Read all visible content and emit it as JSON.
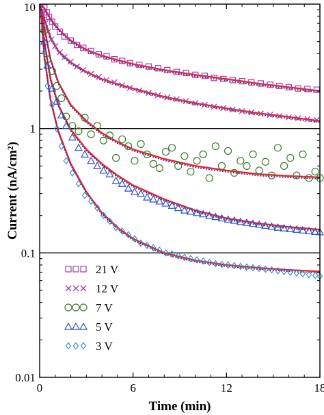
{
  "chart_data": {
    "type": "scatter",
    "xlabel": "Time (min)",
    "ylabel": "Current (nA/cm²)",
    "xlim": [
      0,
      18
    ],
    "ylim": [
      0.01,
      10
    ],
    "y_scale": "log",
    "x_ticks": [
      0,
      6,
      12,
      18
    ],
    "y_ticks": [
      {
        "value": 0.01,
        "label": "0.01"
      },
      {
        "value": 0.1,
        "label": "0.1"
      },
      {
        "value": 1,
        "label": "1"
      },
      {
        "value": 10,
        "label": "10"
      }
    ],
    "reference_lines_y": [
      1,
      0.1
    ],
    "legend_position": "bottom-left",
    "series": [
      {
        "name": "21 V",
        "marker": "square",
        "color": "#9b3fb5",
        "points": [
          [
            0.15,
            10.5
          ],
          [
            0.3,
            9.4
          ],
          [
            0.45,
            8.6
          ],
          [
            0.6,
            7.9
          ],
          [
            0.8,
            7.2
          ],
          [
            1.0,
            6.6
          ],
          [
            1.3,
            6.0
          ],
          [
            1.6,
            5.5
          ],
          [
            2.0,
            5.1
          ],
          [
            2.4,
            4.7
          ],
          [
            2.8,
            4.45
          ],
          [
            3.3,
            4.2
          ],
          [
            3.8,
            3.95
          ],
          [
            4.3,
            3.8
          ],
          [
            4.8,
            3.6
          ],
          [
            5.3,
            3.5
          ],
          [
            5.8,
            3.35
          ],
          [
            6.4,
            3.25
          ],
          [
            7.0,
            3.15
          ],
          [
            7.6,
            3.05
          ],
          [
            8.2,
            2.95
          ],
          [
            8.8,
            2.85
          ],
          [
            9.4,
            2.8
          ],
          [
            10.0,
            2.7
          ],
          [
            10.6,
            2.65
          ],
          [
            11.2,
            2.55
          ],
          [
            11.8,
            2.5
          ],
          [
            12.4,
            2.45
          ],
          [
            13.0,
            2.4
          ],
          [
            13.6,
            2.35
          ],
          [
            14.2,
            2.3
          ],
          [
            14.8,
            2.25
          ],
          [
            15.4,
            2.2
          ],
          [
            16.0,
            2.15
          ],
          [
            16.6,
            2.1
          ],
          [
            17.2,
            2.08
          ],
          [
            17.8,
            2.05
          ]
        ],
        "fit": [
          [
            0.05,
            11.5
          ],
          [
            0.3,
            9.3
          ],
          [
            0.7,
            7.6
          ],
          [
            1.2,
            6.3
          ],
          [
            2,
            5.1
          ],
          [
            3,
            4.3
          ],
          [
            4,
            3.85
          ],
          [
            5,
            3.55
          ],
          [
            6,
            3.3
          ],
          [
            8,
            2.95
          ],
          [
            10,
            2.7
          ],
          [
            12,
            2.5
          ],
          [
            14,
            2.3
          ],
          [
            16,
            2.15
          ],
          [
            18,
            2.0
          ]
        ]
      },
      {
        "name": "12 V",
        "marker": "x",
        "color": "#9b3fb5",
        "points": [
          [
            0.2,
            8.2
          ],
          [
            0.35,
            7.0
          ],
          [
            0.55,
            6.0
          ],
          [
            0.75,
            5.2
          ],
          [
            1.0,
            4.6
          ],
          [
            1.3,
            4.1
          ],
          [
            1.6,
            3.75
          ],
          [
            2.0,
            3.45
          ],
          [
            2.4,
            3.15
          ],
          [
            2.8,
            2.95
          ],
          [
            3.3,
            2.75
          ],
          [
            3.8,
            2.6
          ],
          [
            4.3,
            2.45
          ],
          [
            4.8,
            2.35
          ],
          [
            5.3,
            2.22
          ],
          [
            5.8,
            2.12
          ],
          [
            6.4,
            2.02
          ],
          [
            7.0,
            1.93
          ],
          [
            7.6,
            1.85
          ],
          [
            8.2,
            1.78
          ],
          [
            8.8,
            1.72
          ],
          [
            9.4,
            1.66
          ],
          [
            10.0,
            1.6
          ],
          [
            10.6,
            1.55
          ],
          [
            11.2,
            1.5
          ],
          [
            11.8,
            1.46
          ],
          [
            12.4,
            1.42
          ],
          [
            13.0,
            1.38
          ],
          [
            13.6,
            1.35
          ],
          [
            14.2,
            1.32
          ],
          [
            14.8,
            1.29
          ],
          [
            15.4,
            1.26
          ],
          [
            16.0,
            1.23
          ],
          [
            16.6,
            1.21
          ],
          [
            17.2,
            1.19
          ],
          [
            17.8,
            1.17
          ]
        ],
        "fit": [
          [
            0.05,
            11.5
          ],
          [
            0.3,
            7.6
          ],
          [
            0.7,
            5.4
          ],
          [
            1.2,
            4.2
          ],
          [
            2,
            3.4
          ],
          [
            3,
            2.85
          ],
          [
            4,
            2.5
          ],
          [
            5,
            2.28
          ],
          [
            6,
            2.1
          ],
          [
            8,
            1.8
          ],
          [
            10,
            1.6
          ],
          [
            12,
            1.45
          ],
          [
            14,
            1.33
          ],
          [
            16,
            1.24
          ],
          [
            18,
            1.15
          ]
        ]
      },
      {
        "name": "7 V",
        "marker": "circle",
        "color": "#3a7a2a",
        "points": [
          [
            0.3,
            6.1
          ],
          [
            0.5,
            3.6
          ],
          [
            0.8,
            2.9
          ],
          [
            1.1,
            2.2
          ],
          [
            1.4,
            1.75
          ],
          [
            1.7,
            1.25
          ],
          [
            2.1,
            1.05
          ],
          [
            2.5,
            0.95
          ],
          [
            2.9,
            1.22
          ],
          [
            3.3,
            0.9
          ],
          [
            3.7,
            1.05
          ],
          [
            4.1,
            0.8
          ],
          [
            4.5,
            0.88
          ],
          [
            4.9,
            0.58
          ],
          [
            5.3,
            0.82
          ],
          [
            5.7,
            0.72
          ],
          [
            6.1,
            0.55
          ],
          [
            6.5,
            0.75
          ],
          [
            6.9,
            0.62
          ],
          [
            7.3,
            0.52
          ],
          [
            7.7,
            0.48
          ],
          [
            8.1,
            0.65
          ],
          [
            8.5,
            0.7
          ],
          [
            8.9,
            0.5
          ],
          [
            9.3,
            0.6
          ],
          [
            9.7,
            0.45
          ],
          [
            10.1,
            0.55
          ],
          [
            10.5,
            0.62
          ],
          [
            10.9,
            0.4
          ],
          [
            11.3,
            0.72
          ],
          [
            11.7,
            0.5
          ],
          [
            12.1,
            0.66
          ],
          [
            12.5,
            0.44
          ],
          [
            12.9,
            0.55
          ],
          [
            13.3,
            0.5
          ],
          [
            13.7,
            0.62
          ],
          [
            14.1,
            0.46
          ],
          [
            14.5,
            0.54
          ],
          [
            14.9,
            0.42
          ],
          [
            15.3,
            0.7
          ],
          [
            15.7,
            0.5
          ],
          [
            16.1,
            0.58
          ],
          [
            16.5,
            0.42
          ],
          [
            16.9,
            0.62
          ],
          [
            17.3,
            0.4
          ],
          [
            17.7,
            0.45
          ],
          [
            18.0,
            0.4
          ]
        ],
        "fit": [
          [
            0.05,
            11.5
          ],
          [
            0.3,
            6.5
          ],
          [
            0.7,
            3.6
          ],
          [
            1.2,
            2.35
          ],
          [
            2,
            1.55
          ],
          [
            3,
            1.15
          ],
          [
            4,
            0.92
          ],
          [
            5,
            0.78
          ],
          [
            6,
            0.68
          ],
          [
            8,
            0.57
          ],
          [
            10,
            0.5
          ],
          [
            12,
            0.46
          ],
          [
            14,
            0.43
          ],
          [
            16,
            0.415
          ],
          [
            18,
            0.405
          ]
        ]
      },
      {
        "name": "5 V",
        "marker": "triangle",
        "color": "#2a4fc8",
        "points": [
          [
            0.3,
            5.0
          ],
          [
            0.5,
            3.2
          ],
          [
            0.8,
            2.1
          ],
          [
            1.1,
            1.65
          ],
          [
            1.4,
            1.28
          ],
          [
            1.7,
            1.05
          ],
          [
            2.1,
            0.85
          ],
          [
            2.5,
            0.7
          ],
          [
            2.9,
            0.62
          ],
          [
            3.3,
            0.55
          ],
          [
            3.7,
            0.5
          ],
          [
            4.1,
            0.46
          ],
          [
            4.5,
            0.43
          ],
          [
            4.9,
            0.38
          ],
          [
            5.3,
            0.36
          ],
          [
            5.7,
            0.33
          ],
          [
            6.1,
            0.31
          ],
          [
            6.5,
            0.3
          ],
          [
            6.9,
            0.28
          ],
          [
            7.3,
            0.27
          ],
          [
            7.7,
            0.26
          ],
          [
            8.1,
            0.25
          ],
          [
            8.5,
            0.24
          ],
          [
            8.9,
            0.23
          ],
          [
            9.3,
            0.22
          ],
          [
            9.7,
            0.215
          ],
          [
            10.1,
            0.21
          ],
          [
            10.5,
            0.205
          ],
          [
            10.9,
            0.2
          ],
          [
            11.3,
            0.195
          ],
          [
            11.7,
            0.19
          ],
          [
            12.1,
            0.186
          ],
          [
            12.5,
            0.182
          ],
          [
            12.9,
            0.178
          ],
          [
            13.3,
            0.175
          ],
          [
            13.7,
            0.172
          ],
          [
            14.1,
            0.169
          ],
          [
            14.5,
            0.166
          ],
          [
            14.9,
            0.163
          ],
          [
            15.3,
            0.16
          ],
          [
            15.7,
            0.158
          ],
          [
            16.1,
            0.156
          ],
          [
            16.5,
            0.154
          ],
          [
            16.9,
            0.152
          ],
          [
            17.3,
            0.15
          ],
          [
            17.7,
            0.148
          ],
          [
            18.0,
            0.147
          ]
        ],
        "fit": [
          [
            0.05,
            11.5
          ],
          [
            0.3,
            5.0
          ],
          [
            0.7,
            2.5
          ],
          [
            1.2,
            1.55
          ],
          [
            2,
            0.98
          ],
          [
            3,
            0.68
          ],
          [
            4,
            0.52
          ],
          [
            5,
            0.42
          ],
          [
            6,
            0.35
          ],
          [
            8,
            0.27
          ],
          [
            10,
            0.22
          ],
          [
            12,
            0.19
          ],
          [
            14,
            0.173
          ],
          [
            16,
            0.162
          ],
          [
            18,
            0.154
          ]
        ]
      },
      {
        "name": "3 V",
        "marker": "diamond",
        "color": "#2a8ac8",
        "points": [
          [
            0.3,
            4.1
          ],
          [
            0.5,
            2.2
          ],
          [
            0.8,
            1.55
          ],
          [
            1.1,
            1.0
          ],
          [
            1.4,
            0.72
          ],
          [
            1.7,
            0.55
          ],
          [
            2.1,
            0.44
          ],
          [
            2.5,
            0.36
          ],
          [
            2.9,
            0.29
          ],
          [
            3.3,
            0.26
          ],
          [
            3.7,
            0.23
          ],
          [
            4.1,
            0.2
          ],
          [
            4.5,
            0.18
          ],
          [
            4.9,
            0.16
          ],
          [
            5.3,
            0.15
          ],
          [
            5.7,
            0.14
          ],
          [
            6.1,
            0.13
          ],
          [
            6.5,
            0.12
          ],
          [
            6.9,
            0.115
          ],
          [
            7.3,
            0.11
          ],
          [
            7.7,
            0.105
          ],
          [
            8.1,
            0.1
          ],
          [
            8.5,
            0.098
          ],
          [
            8.9,
            0.095
          ],
          [
            9.3,
            0.092
          ],
          [
            9.7,
            0.09
          ],
          [
            10.1,
            0.088
          ],
          [
            10.5,
            0.086
          ],
          [
            10.9,
            0.084
          ],
          [
            11.3,
            0.082
          ],
          [
            11.7,
            0.081
          ],
          [
            12.1,
            0.08
          ],
          [
            12.5,
            0.079
          ],
          [
            12.9,
            0.078
          ],
          [
            13.3,
            0.077
          ],
          [
            13.7,
            0.076
          ],
          [
            14.1,
            0.075
          ],
          [
            14.5,
            0.074
          ],
          [
            14.9,
            0.073
          ],
          [
            15.3,
            0.072
          ],
          [
            15.7,
            0.071
          ],
          [
            16.1,
            0.07
          ],
          [
            16.5,
            0.069
          ],
          [
            16.9,
            0.068
          ],
          [
            17.3,
            0.067
          ],
          [
            17.7,
            0.066
          ],
          [
            18.0,
            0.065
          ]
        ],
        "fit": [
          [
            0.05,
            11.5
          ],
          [
            0.3,
            3.8
          ],
          [
            0.7,
            1.7
          ],
          [
            1.2,
            0.95
          ],
          [
            2,
            0.52
          ],
          [
            3,
            0.31
          ],
          [
            4,
            0.21
          ],
          [
            5,
            0.16
          ],
          [
            6,
            0.13
          ],
          [
            8,
            0.1
          ],
          [
            10,
            0.087
          ],
          [
            12,
            0.08
          ],
          [
            14,
            0.076
          ],
          [
            16,
            0.073
          ],
          [
            18,
            0.071
          ]
        ]
      }
    ]
  }
}
